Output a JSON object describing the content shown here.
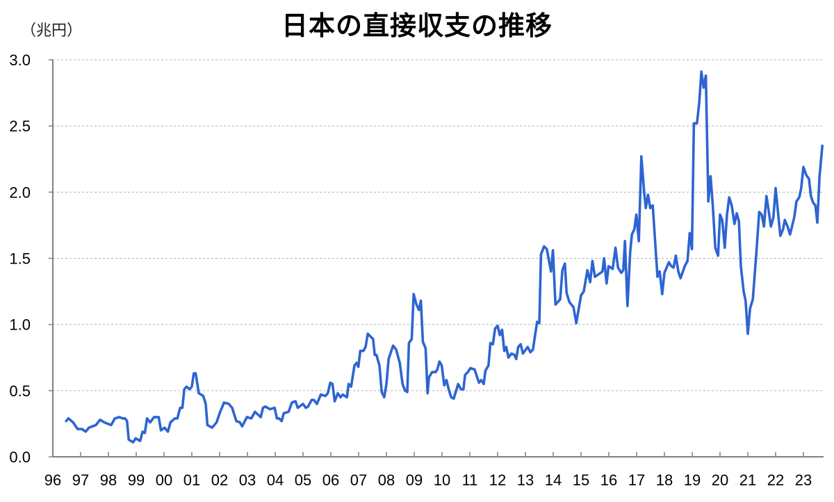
{
  "chart_data": {
    "type": "line",
    "title": "日本の直接収支の推移",
    "ylabel": "（兆円）",
    "xlabel": "",
    "ylim": [
      0,
      3.0
    ],
    "xlim": [
      1996,
      2023.725
    ],
    "yticks": [
      "0.0",
      "0.5",
      "1.0",
      "1.5",
      "2.0",
      "2.5",
      "3.0"
    ],
    "xticks": [
      "96",
      "97",
      "98",
      "99",
      "00",
      "01",
      "02",
      "03",
      "04",
      "05",
      "06",
      "07",
      "08",
      "09",
      "10",
      "11",
      "12",
      "13",
      "14",
      "15",
      "16",
      "17",
      "18",
      "19",
      "20",
      "21",
      "22",
      "23"
    ],
    "grid": "horizontal dashed",
    "legend": "none",
    "colors": {
      "line": "#2d64d2",
      "grid": "#b0b0b0",
      "axis": "#808080"
    },
    "series": [
      {
        "points": [
          [
            1996.48,
            0.27
          ],
          [
            1996.56,
            0.29
          ],
          [
            1996.73,
            0.26
          ],
          [
            1996.89,
            0.21
          ],
          [
            1997.05,
            0.21
          ],
          [
            1997.18,
            0.19
          ],
          [
            1997.3,
            0.22
          ],
          [
            1997.55,
            0.24
          ],
          [
            1997.7,
            0.28
          ],
          [
            1997.85,
            0.26
          ],
          [
            1998.1,
            0.24
          ],
          [
            1998.23,
            0.29
          ],
          [
            1998.39,
            0.3
          ],
          [
            1998.52,
            0.29
          ],
          [
            1998.6,
            0.29
          ],
          [
            1998.67,
            0.27
          ],
          [
            1998.73,
            0.13
          ],
          [
            1998.89,
            0.11
          ],
          [
            1998.98,
            0.14
          ],
          [
            1999.14,
            0.12
          ],
          [
            1999.23,
            0.19
          ],
          [
            1999.31,
            0.18
          ],
          [
            1999.39,
            0.29
          ],
          [
            1999.5,
            0.26
          ],
          [
            1999.64,
            0.3
          ],
          [
            1999.81,
            0.3
          ],
          [
            1999.89,
            0.2
          ],
          [
            2000.02,
            0.22
          ],
          [
            2000.14,
            0.19
          ],
          [
            2000.23,
            0.26
          ],
          [
            2000.39,
            0.29
          ],
          [
            2000.48,
            0.29
          ],
          [
            2000.58,
            0.37
          ],
          [
            2000.66,
            0.37
          ],
          [
            2000.73,
            0.51
          ],
          [
            2000.81,
            0.53
          ],
          [
            2000.92,
            0.51
          ],
          [
            2001.0,
            0.53
          ],
          [
            2001.07,
            0.63
          ],
          [
            2001.14,
            0.63
          ],
          [
            2001.25,
            0.48
          ],
          [
            2001.41,
            0.46
          ],
          [
            2001.5,
            0.4
          ],
          [
            2001.56,
            0.24
          ],
          [
            2001.73,
            0.22
          ],
          [
            2001.89,
            0.26
          ],
          [
            2002.02,
            0.34
          ],
          [
            2002.16,
            0.41
          ],
          [
            2002.33,
            0.4
          ],
          [
            2002.45,
            0.37
          ],
          [
            2002.6,
            0.27
          ],
          [
            2002.73,
            0.26
          ],
          [
            2002.81,
            0.23
          ],
          [
            2002.98,
            0.3
          ],
          [
            2003.14,
            0.29
          ],
          [
            2003.27,
            0.34
          ],
          [
            2003.48,
            0.3
          ],
          [
            2003.56,
            0.37
          ],
          [
            2003.64,
            0.38
          ],
          [
            2003.81,
            0.36
          ],
          [
            2003.98,
            0.37
          ],
          [
            2004.06,
            0.29
          ],
          [
            2004.14,
            0.29
          ],
          [
            2004.23,
            0.27
          ],
          [
            2004.31,
            0.33
          ],
          [
            2004.48,
            0.34
          ],
          [
            2004.6,
            0.41
          ],
          [
            2004.73,
            0.42
          ],
          [
            2004.81,
            0.37
          ],
          [
            2005.0,
            0.4
          ],
          [
            2005.1,
            0.37
          ],
          [
            2005.18,
            0.38
          ],
          [
            2005.31,
            0.43
          ],
          [
            2005.39,
            0.43
          ],
          [
            2005.5,
            0.4
          ],
          [
            2005.64,
            0.47
          ],
          [
            2005.81,
            0.46
          ],
          [
            2005.89,
            0.48
          ],
          [
            2005.98,
            0.56
          ],
          [
            2006.06,
            0.55
          ],
          [
            2006.14,
            0.42
          ],
          [
            2006.25,
            0.48
          ],
          [
            2006.35,
            0.45
          ],
          [
            2006.43,
            0.47
          ],
          [
            2006.58,
            0.45
          ],
          [
            2006.64,
            0.55
          ],
          [
            2006.73,
            0.53
          ],
          [
            2006.85,
            0.69
          ],
          [
            2006.93,
            0.71
          ],
          [
            2006.99,
            0.68
          ],
          [
            2007.06,
            0.8
          ],
          [
            2007.17,
            0.8
          ],
          [
            2007.25,
            0.83
          ],
          [
            2007.33,
            0.93
          ],
          [
            2007.52,
            0.89
          ],
          [
            2007.58,
            0.77
          ],
          [
            2007.64,
            0.77
          ],
          [
            2007.75,
            0.69
          ],
          [
            2007.83,
            0.49
          ],
          [
            2007.92,
            0.45
          ],
          [
            2008.0,
            0.55
          ],
          [
            2008.08,
            0.74
          ],
          [
            2008.24,
            0.84
          ],
          [
            2008.35,
            0.81
          ],
          [
            2008.48,
            0.71
          ],
          [
            2008.58,
            0.55
          ],
          [
            2008.67,
            0.5
          ],
          [
            2008.75,
            0.49
          ],
          [
            2008.81,
            0.86
          ],
          [
            2008.91,
            0.89
          ],
          [
            2008.98,
            1.23
          ],
          [
            2009.08,
            1.15
          ],
          [
            2009.17,
            1.11
          ],
          [
            2009.24,
            1.18
          ],
          [
            2009.31,
            0.87
          ],
          [
            2009.41,
            0.82
          ],
          [
            2009.48,
            0.48
          ],
          [
            2009.53,
            0.6
          ],
          [
            2009.64,
            0.64
          ],
          [
            2009.77,
            0.64
          ],
          [
            2009.83,
            0.66
          ],
          [
            2009.91,
            0.72
          ],
          [
            2009.99,
            0.69
          ],
          [
            2010.08,
            0.54
          ],
          [
            2010.16,
            0.58
          ],
          [
            2010.24,
            0.51
          ],
          [
            2010.33,
            0.45
          ],
          [
            2010.42,
            0.44
          ],
          [
            2010.58,
            0.55
          ],
          [
            2010.68,
            0.51
          ],
          [
            2010.77,
            0.51
          ],
          [
            2010.83,
            0.62
          ],
          [
            2010.93,
            0.64
          ],
          [
            2011.02,
            0.67
          ],
          [
            2011.17,
            0.66
          ],
          [
            2011.33,
            0.56
          ],
          [
            2011.41,
            0.58
          ],
          [
            2011.5,
            0.55
          ],
          [
            2011.56,
            0.65
          ],
          [
            2011.67,
            0.69
          ],
          [
            2011.74,
            0.86
          ],
          [
            2011.83,
            0.85
          ],
          [
            2011.91,
            0.97
          ],
          [
            2012.0,
            0.99
          ],
          [
            2012.08,
            0.92
          ],
          [
            2012.16,
            0.96
          ],
          [
            2012.24,
            0.8
          ],
          [
            2012.31,
            0.83
          ],
          [
            2012.39,
            0.75
          ],
          [
            2012.5,
            0.78
          ],
          [
            2012.6,
            0.77
          ],
          [
            2012.67,
            0.74
          ],
          [
            2012.74,
            0.83
          ],
          [
            2012.83,
            0.85
          ],
          [
            2012.91,
            0.78
          ],
          [
            2013.08,
            0.83
          ],
          [
            2013.18,
            0.79
          ],
          [
            2013.27,
            0.81
          ],
          [
            2013.42,
            1.02
          ],
          [
            2013.5,
            1.01
          ],
          [
            2013.56,
            1.53
          ],
          [
            2013.67,
            1.59
          ],
          [
            2013.77,
            1.57
          ],
          [
            2013.92,
            1.4
          ],
          [
            2013.99,
            1.56
          ],
          [
            2014.08,
            1.15
          ],
          [
            2014.25,
            1.19
          ],
          [
            2014.33,
            1.41
          ],
          [
            2014.42,
            1.46
          ],
          [
            2014.48,
            1.24
          ],
          [
            2014.58,
            1.17
          ],
          [
            2014.73,
            1.13
          ],
          [
            2014.83,
            1.01
          ],
          [
            2015.0,
            1.22
          ],
          [
            2015.1,
            1.25
          ],
          [
            2015.23,
            1.41
          ],
          [
            2015.33,
            1.32
          ],
          [
            2015.41,
            1.48
          ],
          [
            2015.5,
            1.36
          ],
          [
            2015.64,
            1.38
          ],
          [
            2015.77,
            1.4
          ],
          [
            2015.83,
            1.5
          ],
          [
            2015.92,
            1.31
          ],
          [
            2015.99,
            1.44
          ],
          [
            2016.14,
            1.42
          ],
          [
            2016.24,
            1.58
          ],
          [
            2016.33,
            1.43
          ],
          [
            2016.45,
            1.39
          ],
          [
            2016.52,
            1.41
          ],
          [
            2016.58,
            1.63
          ],
          [
            2016.67,
            1.14
          ],
          [
            2016.77,
            1.55
          ],
          [
            2016.83,
            1.68
          ],
          [
            2016.92,
            1.72
          ],
          [
            2016.99,
            1.83
          ],
          [
            2017.08,
            1.63
          ],
          [
            2017.17,
            2.27
          ],
          [
            2017.27,
            2.0
          ],
          [
            2017.33,
            1.88
          ],
          [
            2017.41,
            1.98
          ],
          [
            2017.49,
            1.88
          ],
          [
            2017.58,
            1.9
          ],
          [
            2017.75,
            1.36
          ],
          [
            2017.83,
            1.4
          ],
          [
            2017.92,
            1.23
          ],
          [
            2018.0,
            1.39
          ],
          [
            2018.16,
            1.47
          ],
          [
            2018.25,
            1.44
          ],
          [
            2018.33,
            1.43
          ],
          [
            2018.41,
            1.52
          ],
          [
            2018.5,
            1.4
          ],
          [
            2018.58,
            1.35
          ],
          [
            2018.73,
            1.44
          ],
          [
            2018.83,
            1.48
          ],
          [
            2018.91,
            1.69
          ],
          [
            2018.99,
            1.57
          ],
          [
            2019.06,
            2.52
          ],
          [
            2019.17,
            2.52
          ],
          [
            2019.25,
            2.67
          ],
          [
            2019.33,
            2.91
          ],
          [
            2019.41,
            2.79
          ],
          [
            2019.49,
            2.88
          ],
          [
            2019.58,
            1.93
          ],
          [
            2019.66,
            2.12
          ],
          [
            2019.74,
            1.9
          ],
          [
            2019.83,
            1.58
          ],
          [
            2019.93,
            1.52
          ],
          [
            2020.0,
            1.83
          ],
          [
            2020.08,
            1.79
          ],
          [
            2020.17,
            1.58
          ],
          [
            2020.25,
            1.83
          ],
          [
            2020.33,
            1.96
          ],
          [
            2020.42,
            1.9
          ],
          [
            2020.52,
            1.76
          ],
          [
            2020.6,
            1.84
          ],
          [
            2020.68,
            1.78
          ],
          [
            2020.75,
            1.44
          ],
          [
            2020.85,
            1.25
          ],
          [
            2020.92,
            1.18
          ],
          [
            2021.0,
            0.93
          ],
          [
            2021.08,
            1.12
          ],
          [
            2021.18,
            1.19
          ],
          [
            2021.31,
            1.55
          ],
          [
            2021.41,
            1.85
          ],
          [
            2021.5,
            1.83
          ],
          [
            2021.58,
            1.74
          ],
          [
            2021.67,
            1.97
          ],
          [
            2021.75,
            1.86
          ],
          [
            2021.83,
            1.74
          ],
          [
            2021.92,
            1.81
          ],
          [
            2022.0,
            2.03
          ],
          [
            2022.08,
            1.86
          ],
          [
            2022.17,
            1.67
          ],
          [
            2022.27,
            1.72
          ],
          [
            2022.33,
            1.79
          ],
          [
            2022.43,
            1.74
          ],
          [
            2022.52,
            1.68
          ],
          [
            2022.67,
            1.81
          ],
          [
            2022.75,
            1.93
          ],
          [
            2022.85,
            1.96
          ],
          [
            2022.92,
            2.03
          ],
          [
            2023.0,
            2.19
          ],
          [
            2023.1,
            2.13
          ],
          [
            2023.2,
            2.1
          ],
          [
            2023.27,
            1.97
          ],
          [
            2023.35,
            1.92
          ],
          [
            2023.43,
            1.9
          ],
          [
            2023.5,
            1.77
          ],
          [
            2023.58,
            2.12
          ],
          [
            2023.68,
            2.35
          ]
        ]
      }
    ]
  }
}
